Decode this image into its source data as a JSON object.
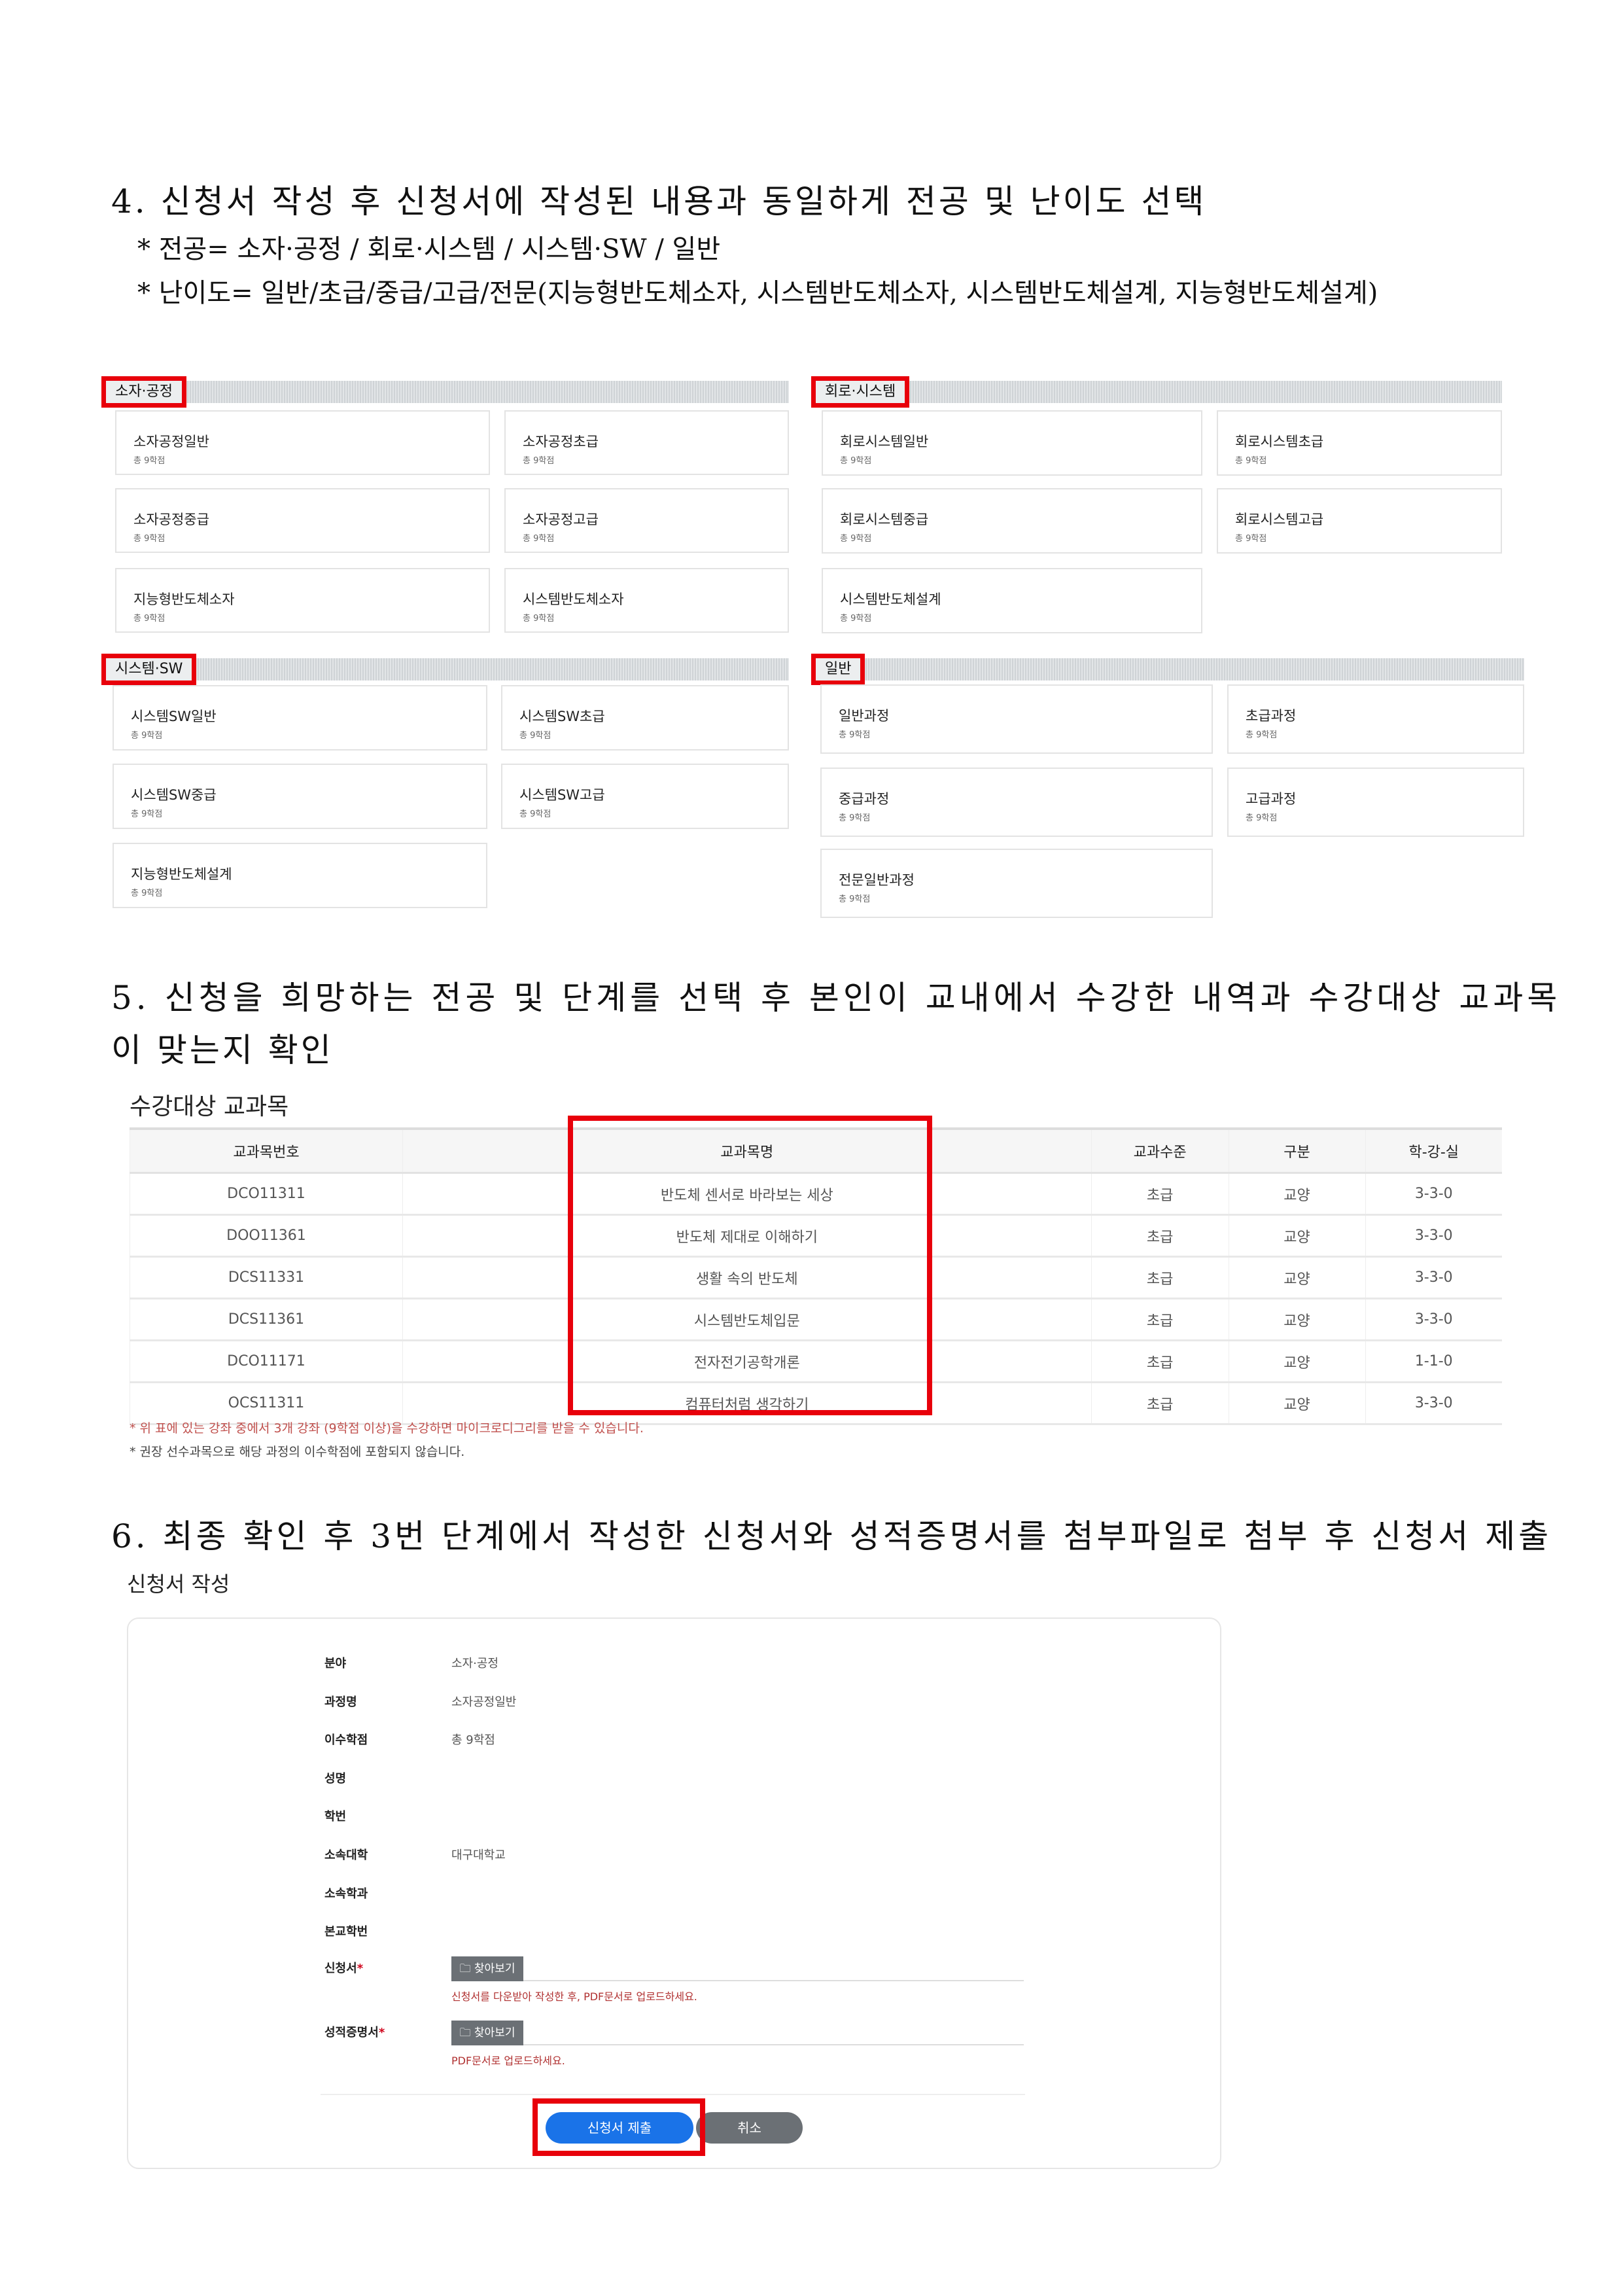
{
  "section4": {
    "heading": "4. 신청서 작성 후 신청서에 작성된 내용과 동일하게 전공 및 난이도 선택",
    "bullets": [
      "* 전공= 소자·공정 / 회로·시스템 / 시스템·SW / 일반",
      "* 난이도= 일반/초급/중급/고급/전문(지능형반도체소자, 시스템반도체소자, 시스템반도체설계, 지능형반도체설계)"
    ],
    "panels": [
      {
        "label": "소자·공정",
        "cards": [
          {
            "title": "소자공정일반",
            "credits": "총 9학점"
          },
          {
            "title": "소자공정초급",
            "credits": "총 9학점"
          },
          {
            "title": "소자공정중급",
            "credits": "총 9학점"
          },
          {
            "title": "소자공정고급",
            "credits": "총 9학점"
          },
          {
            "title": "지능형반도체소자",
            "credits": "총 9학점"
          },
          {
            "title": "시스템반도체소자",
            "credits": "총 9학점"
          }
        ]
      },
      {
        "label": "회로·시스템",
        "cards": [
          {
            "title": "회로시스템일반",
            "credits": "총 9학점"
          },
          {
            "title": "회로시스템초급",
            "credits": "총 9학점"
          },
          {
            "title": "회로시스템중급",
            "credits": "총 9학점"
          },
          {
            "title": "회로시스템고급",
            "credits": "총 9학점"
          },
          {
            "title": "시스템반도체설계",
            "credits": "총 9학점"
          }
        ]
      },
      {
        "label": "시스템·SW",
        "cards": [
          {
            "title": "시스템SW일반",
            "credits": "총 9학점"
          },
          {
            "title": "시스템SW초급",
            "credits": "총 9학점"
          },
          {
            "title": "시스템SW중급",
            "credits": "총 9학점"
          },
          {
            "title": "시스템SW고급",
            "credits": "총 9학점"
          },
          {
            "title": "지능형반도체설계",
            "credits": "총 9학점"
          }
        ]
      },
      {
        "label": "일반",
        "cards": [
          {
            "title": "일반과정",
            "credits": "총 9학점"
          },
          {
            "title": "초급과정",
            "credits": "총 9학점"
          },
          {
            "title": "중급과정",
            "credits": "총 9학점"
          },
          {
            "title": "고급과정",
            "credits": "총 9학점"
          },
          {
            "title": "전문일반과정",
            "credits": "총 9학점"
          }
        ]
      }
    ]
  },
  "section5": {
    "heading_line1": "5. 신청을 희망하는 전공 및 단계를 선택 후 본인이 교내에서 수강한 내역과 수강대상 교과목",
    "heading_line2": "이 맞는지 확인",
    "subtitle": "수강대상 교과목",
    "columns": [
      "교과목번호",
      "교과목명",
      "교과수준",
      "구분",
      "학-강-실"
    ],
    "rows": [
      [
        "DCO11311",
        "반도체 센서로 바라보는 세상",
        "초급",
        "교양",
        "3-3-0"
      ],
      [
        "DOO11361",
        "반도체 제대로 이해하기",
        "초급",
        "교양",
        "3-3-0"
      ],
      [
        "DCS11331",
        "생활 속의 반도체",
        "초급",
        "교양",
        "3-3-0"
      ],
      [
        "DCS11361",
        "시스템반도체입문",
        "초급",
        "교양",
        "3-3-0"
      ],
      [
        "DCO11171",
        "전자전기공학개론",
        "초급",
        "교양",
        "1-1-0"
      ],
      [
        "OCS11311",
        "컴퓨터처럼 생각하기",
        "초급",
        "교양",
        "3-3-0"
      ]
    ],
    "note1": "* 위 표에 있는 강좌 중에서 3개 강좌 (9학점 이상)을 수강하면 마이크로디그리를 받을 수 있습니다.",
    "note2": "* 권장 선수과목으로 해당 과정의 이수학점에 포함되지 않습니다."
  },
  "section6": {
    "heading": "6. 최종 확인 후 3번 단계에서 작성한 신청서와 성적증명서를 첨부파일로 첨부 후 신청서 제출",
    "subtitle": "신청서 작성",
    "fields": [
      {
        "label": "분야",
        "value": "소자·공정"
      },
      {
        "label": "과정명",
        "value": "소자공정일반"
      },
      {
        "label": "이수학점",
        "value": "총 9학점"
      },
      {
        "label": "성명",
        "value": ""
      },
      {
        "label": "학번",
        "value": ""
      },
      {
        "label": "소속대학",
        "value": "대구대학교"
      },
      {
        "label": "소속학과",
        "value": ""
      },
      {
        "label": "본교학번",
        "value": ""
      }
    ],
    "application_label": "신청서",
    "transcript_label": "성적증명서",
    "required_mark": "*",
    "browse_label": "찾아보기",
    "application_hint": "신청서를 다운받아 작성한 후, PDF문서로 업로드하세요.",
    "transcript_hint": "PDF문서로 업로드하세요.",
    "submit_label": "신청서 제출",
    "cancel_label": "취소"
  },
  "colors": {
    "highlight": "#e8000b",
    "submit": "#1a73e8",
    "cancel": "#6b7075",
    "hint": "#b03030"
  }
}
